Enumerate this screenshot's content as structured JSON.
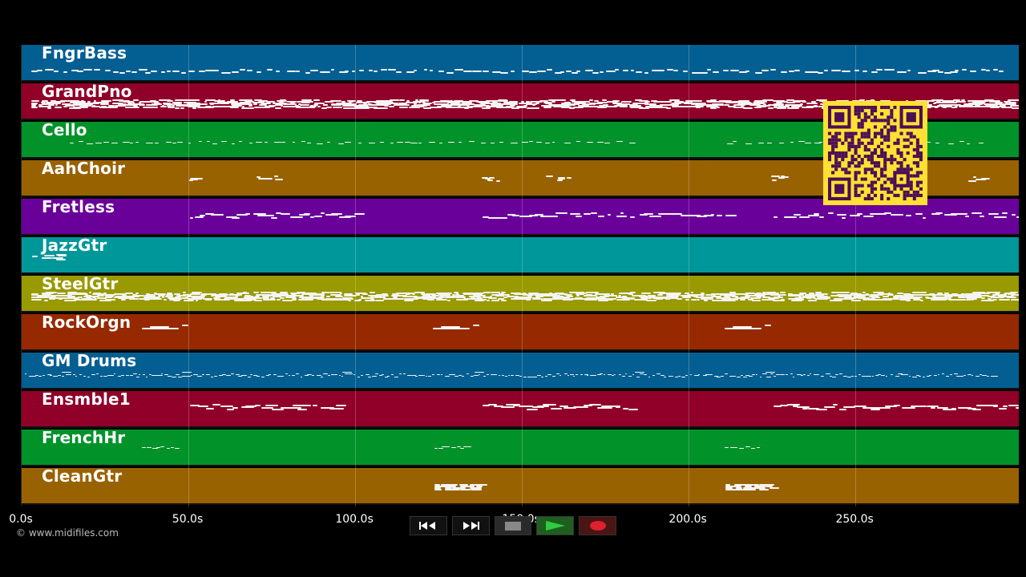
{
  "tracks": [
    {
      "name": "FngrBass",
      "color": "#035f92",
      "pattern": "line"
    },
    {
      "name": "GrandPno",
      "color": "#900029",
      "pattern": "dense"
    },
    {
      "name": "Cello",
      "color": "#02922a",
      "pattern": "sparse-line"
    },
    {
      "name": "AahChoir",
      "color": "#996200",
      "pattern": "clusters"
    },
    {
      "name": "Fretless",
      "color": "#6a009a",
      "pattern": "phrases"
    },
    {
      "name": "JazzGtr",
      "color": "#00979a",
      "pattern": "intro"
    },
    {
      "name": "SteelGtr",
      "color": "#999900",
      "pattern": "dense"
    },
    {
      "name": "RockOrgn",
      "color": "#962900",
      "pattern": "short"
    },
    {
      "name": "GM Drums",
      "color": "#035f92",
      "pattern": "drums"
    },
    {
      "name": "Ensmble1",
      "color": "#900029",
      "pattern": "phrases2"
    },
    {
      "name": "FrenchHr",
      "color": "#02922a",
      "pattern": "tiny"
    },
    {
      "name": "CleanGtr",
      "color": "#996200",
      "pattern": "chords"
    }
  ],
  "timeline": {
    "ticks": [
      "0.0s",
      "50.0s",
      "100.0s",
      "150.0s",
      "200.0s",
      "250.0s"
    ],
    "tick_seconds": [
      0,
      50,
      100,
      150,
      200,
      250
    ],
    "max_seconds": 299
  },
  "credit": "© www.midifiles.com",
  "transport": {
    "rewind": "rewind-icon",
    "fast_forward": "fast-forward-icon",
    "stop": "stop-icon",
    "play": "play-icon",
    "record": "record-icon"
  }
}
